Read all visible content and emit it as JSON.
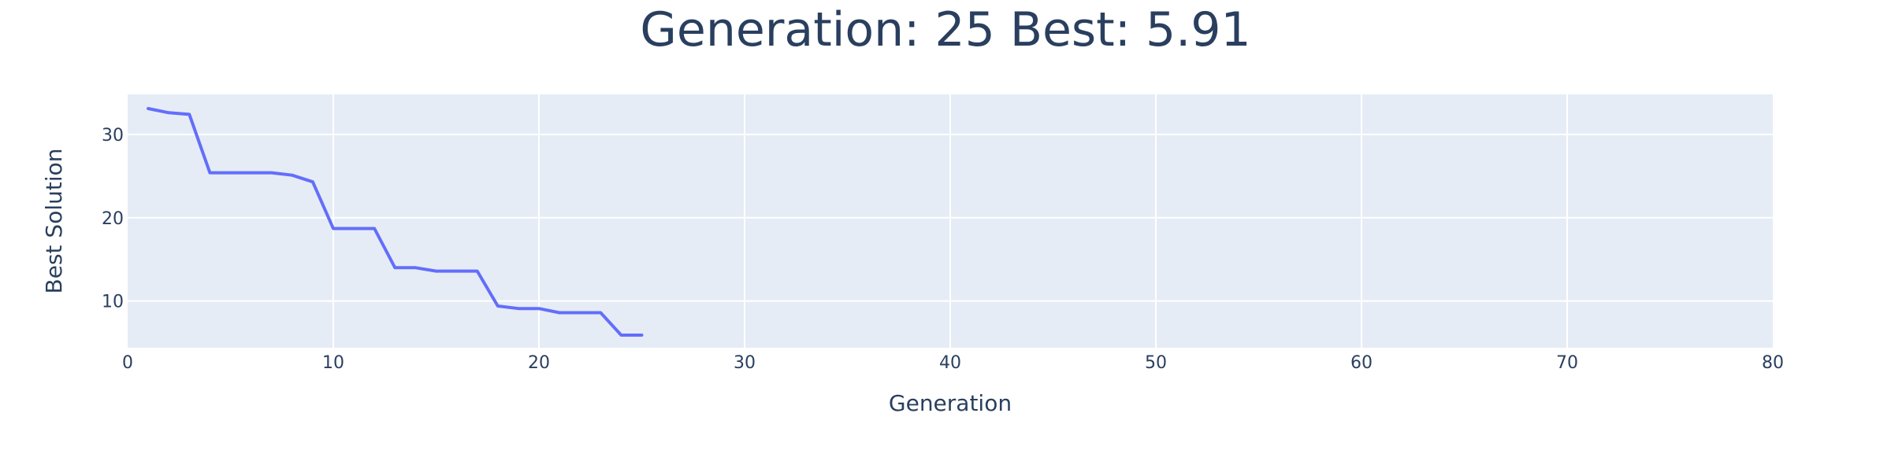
{
  "chart_data": {
    "type": "line",
    "title": "Generation: 25 Best: 5.91",
    "xlabel": "Generation",
    "ylabel": "Best Solution",
    "xlim": [
      0,
      80
    ],
    "ylim": [
      4.4,
      34.8
    ],
    "xticks": [
      0,
      10,
      20,
      30,
      40,
      50,
      60,
      70,
      80
    ],
    "yticks": [
      10,
      20,
      30
    ],
    "grid": true,
    "legend": "none",
    "colors": {
      "line": "#636efa",
      "plot_bg": "#e5ecf6",
      "grid": "#ffffff",
      "text": "#2a3f5f"
    },
    "series": [
      {
        "x": [
          1,
          2,
          3,
          4,
          5,
          6,
          7,
          8,
          9,
          10,
          11,
          12,
          13,
          14,
          15,
          16,
          17,
          18,
          19,
          20,
          21,
          22,
          23,
          24,
          25
        ],
        "y": [
          33.1,
          32.6,
          32.4,
          25.4,
          25.4,
          25.4,
          25.4,
          25.1,
          24.3,
          18.7,
          18.7,
          18.7,
          14.0,
          14.0,
          13.6,
          13.6,
          13.6,
          9.4,
          9.1,
          9.1,
          8.6,
          8.6,
          8.6,
          5.91,
          5.91
        ]
      }
    ]
  }
}
